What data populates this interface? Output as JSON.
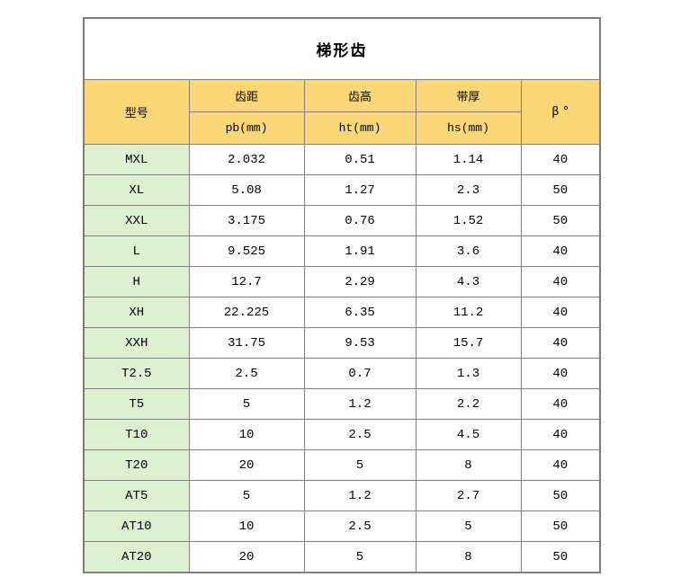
{
  "title": "梯形齿",
  "colors": {
    "header_bg": "#FBD877",
    "model_col_bg": "#DDF0D2",
    "border": "#808080",
    "text": "#000000",
    "title_bg": "#FFFFFF"
  },
  "table": {
    "header": {
      "model": "型号",
      "groups": [
        {
          "label": "齿距",
          "sub": "pb(mm)"
        },
        {
          "label": "齿高",
          "sub": "ht(mm)"
        },
        {
          "label": "带厚",
          "sub": "hs(mm)"
        }
      ],
      "beta": "β °"
    },
    "rows": [
      {
        "model": "MXL",
        "pb": "2.032",
        "ht": "0.51",
        "hs": "1.14",
        "beta": "40"
      },
      {
        "model": "XL",
        "pb": "5.08",
        "ht": "1.27",
        "hs": "2.3",
        "beta": "50"
      },
      {
        "model": "XXL",
        "pb": "3.175",
        "ht": "0.76",
        "hs": "1.52",
        "beta": "50"
      },
      {
        "model": "L",
        "pb": "9.525",
        "ht": "1.91",
        "hs": "3.6",
        "beta": "40"
      },
      {
        "model": "H",
        "pb": "12.7",
        "ht": "2.29",
        "hs": "4.3",
        "beta": "40"
      },
      {
        "model": "XH",
        "pb": "22.225",
        "ht": "6.35",
        "hs": "11.2",
        "beta": "40"
      },
      {
        "model": "XXH",
        "pb": "31.75",
        "ht": "9.53",
        "hs": "15.7",
        "beta": "40"
      },
      {
        "model": "T2.5",
        "pb": "2.5",
        "ht": "0.7",
        "hs": "1.3",
        "beta": "40"
      },
      {
        "model": "T5",
        "pb": "5",
        "ht": "1.2",
        "hs": "2.2",
        "beta": "40"
      },
      {
        "model": "T10",
        "pb": "10",
        "ht": "2.5",
        "hs": "4.5",
        "beta": "40"
      },
      {
        "model": "T20",
        "pb": "20",
        "ht": "5",
        "hs": "8",
        "beta": "40"
      },
      {
        "model": "AT5",
        "pb": "5",
        "ht": "1.2",
        "hs": "2.7",
        "beta": "50"
      },
      {
        "model": "AT10",
        "pb": "10",
        "ht": "2.5",
        "hs": "5",
        "beta": "50"
      },
      {
        "model": "AT20",
        "pb": "20",
        "ht": "5",
        "hs": "8",
        "beta": "50"
      }
    ]
  },
  "chart_data": {
    "type": "table",
    "title": "梯形齿",
    "columns": [
      "型号",
      "齿距 pb(mm)",
      "齿高 ht(mm)",
      "带厚 hs(mm)",
      "β °"
    ],
    "rows": [
      [
        "MXL",
        2.032,
        0.51,
        1.14,
        40
      ],
      [
        "XL",
        5.08,
        1.27,
        2.3,
        50
      ],
      [
        "XXL",
        3.175,
        0.76,
        1.52,
        50
      ],
      [
        "L",
        9.525,
        1.91,
        3.6,
        40
      ],
      [
        "H",
        12.7,
        2.29,
        4.3,
        40
      ],
      [
        "XH",
        22.225,
        6.35,
        11.2,
        40
      ],
      [
        "XXH",
        31.75,
        9.53,
        15.7,
        40
      ],
      [
        "T2.5",
        2.5,
        0.7,
        1.3,
        40
      ],
      [
        "T5",
        5,
        1.2,
        2.2,
        40
      ],
      [
        "T10",
        10,
        2.5,
        4.5,
        40
      ],
      [
        "T20",
        20,
        5,
        8,
        40
      ],
      [
        "AT5",
        5,
        1.2,
        2.7,
        50
      ],
      [
        "AT10",
        10,
        2.5,
        5,
        50
      ],
      [
        "AT20",
        20,
        5,
        8,
        50
      ]
    ]
  }
}
